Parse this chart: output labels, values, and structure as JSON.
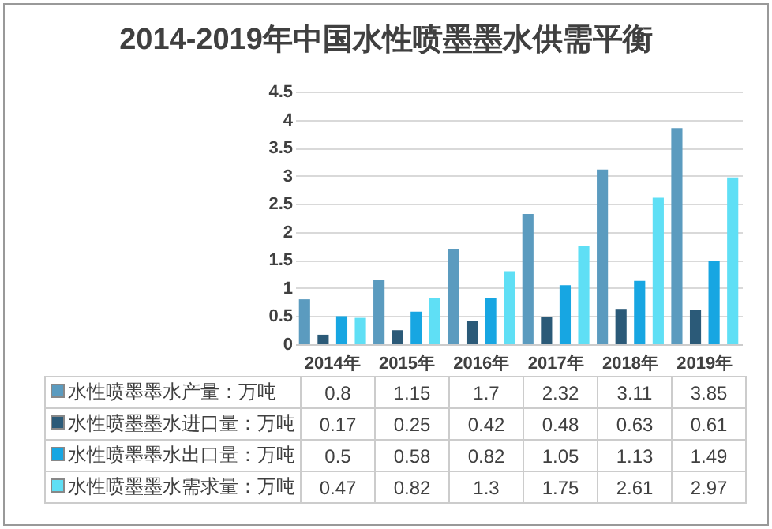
{
  "chart_data": {
    "type": "bar",
    "title": "2014-2019年中国水性喷墨墨水供需平衡",
    "categories": [
      "2014年",
      "2015年",
      "2016年",
      "2017年",
      "2018年",
      "2019年"
    ],
    "series": [
      {
        "name": "水性喷墨墨水产量：万吨",
        "color": "#5b9bbf",
        "values": [
          0.8,
          1.15,
          1.7,
          2.32,
          3.11,
          3.85
        ]
      },
      {
        "name": "水性喷墨墨水进口量：万吨",
        "color": "#2b5a78",
        "values": [
          0.17,
          0.25,
          0.42,
          0.48,
          0.63,
          0.61
        ]
      },
      {
        "name": "水性喷墨墨水出口量：万吨",
        "color": "#17a6e2",
        "values": [
          0.5,
          0.58,
          0.82,
          1.05,
          1.13,
          1.49
        ]
      },
      {
        "name": "水性喷墨墨水需求量：万吨",
        "color": "#5fdff5",
        "values": [
          0.47,
          0.82,
          1.3,
          1.75,
          2.61,
          2.97
        ]
      }
    ],
    "ylim": [
      0,
      4.5
    ],
    "yticks": [
      0,
      0.5,
      1,
      1.5,
      2,
      2.5,
      3,
      3.5,
      4,
      4.5
    ],
    "grid": "y",
    "legend": "bottom",
    "data_labels": true
  }
}
